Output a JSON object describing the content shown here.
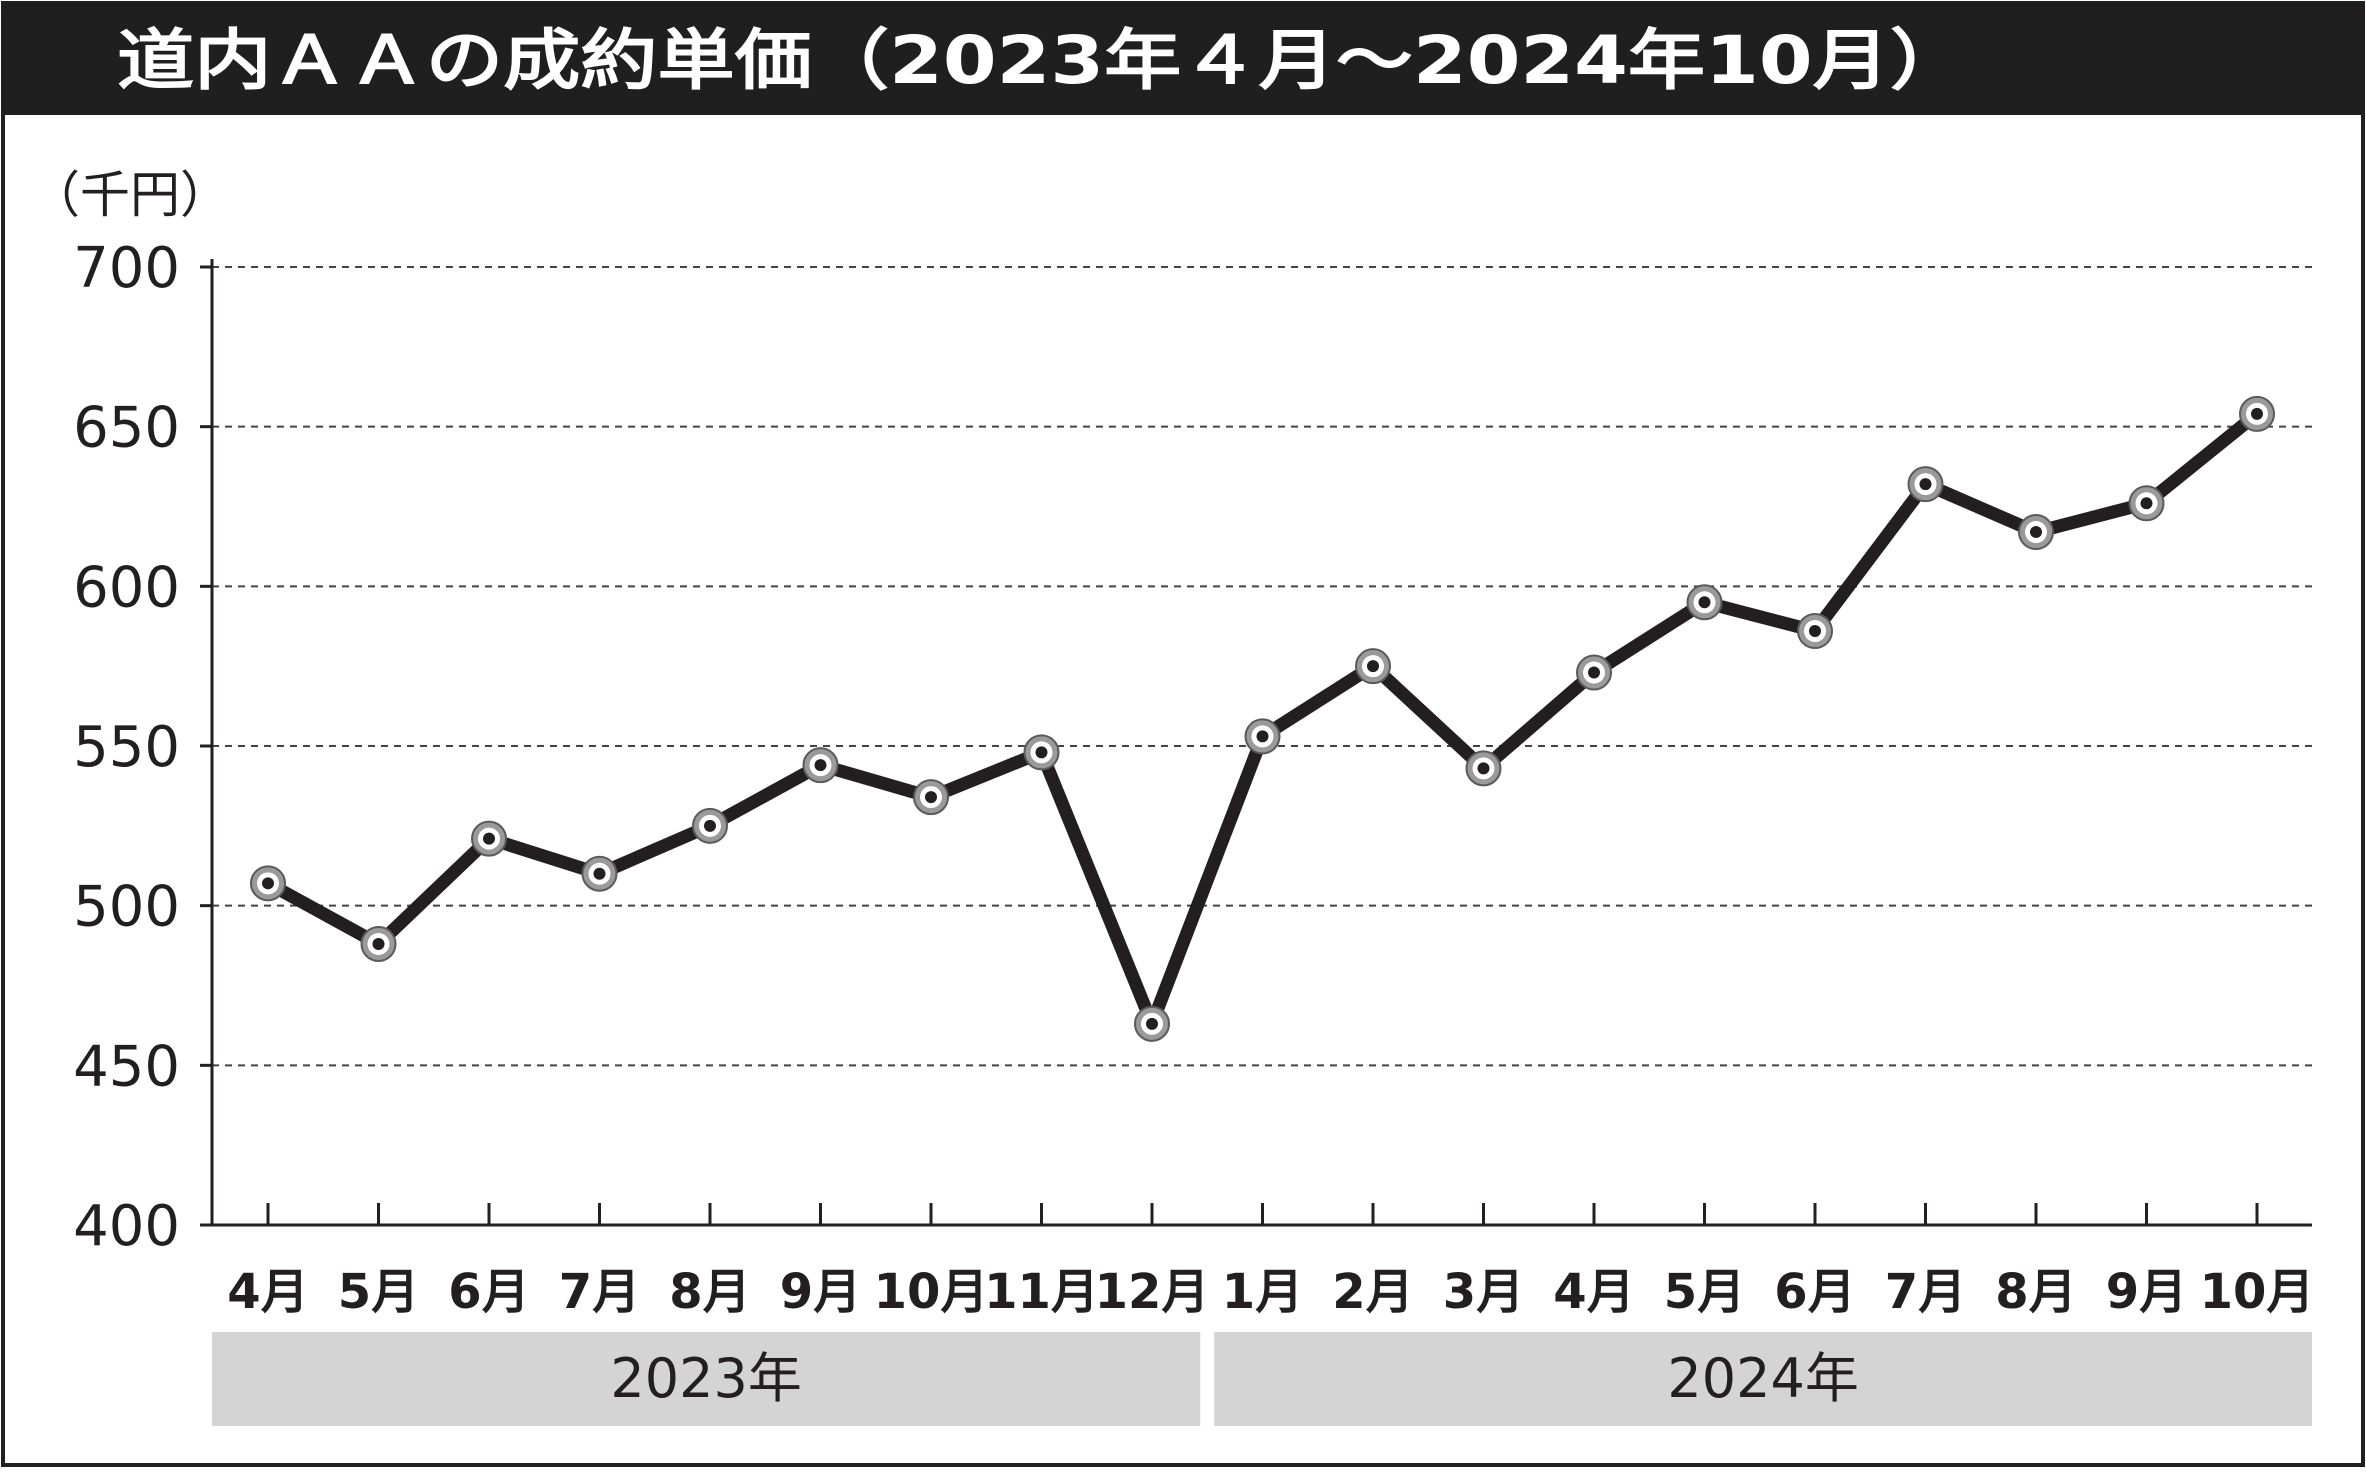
{
  "title": "道内ＡＡの成約単価（2023年４月～2024年10月）",
  "colors": {
    "title_bar": "#1f1f1f",
    "title_text": "#ffffff",
    "line": "#231f20",
    "marker_ring": "#9a9a9a",
    "year_band": "#d4d4d4",
    "grid": "#444444"
  },
  "chart_data": {
    "type": "line",
    "title": "道内ＡＡの成約単価（2023年４月～2024年10月）",
    "unit_label": "（千円）",
    "xlabel": "",
    "ylabel": "",
    "ylim": [
      400,
      700
    ],
    "yticks": [
      400,
      450,
      500,
      550,
      600,
      650,
      700
    ],
    "grid": "horizontal dashed",
    "legend": "none",
    "categories": [
      "4月",
      "5月",
      "6月",
      "7月",
      "8月",
      "9月",
      "10月",
      "11月",
      "12月",
      "1月",
      "2月",
      "3月",
      "4月",
      "5月",
      "6月",
      "7月",
      "8月",
      "9月",
      "10月"
    ],
    "year_groups": [
      {
        "label": "2023年",
        "start": 0,
        "end": 8
      },
      {
        "label": "2024年",
        "start": 9,
        "end": 18
      }
    ],
    "series": [
      {
        "values": [
          507,
          488,
          521,
          510,
          525,
          544,
          534,
          548,
          463,
          553,
          575,
          543,
          573,
          595,
          586,
          632,
          617,
          626,
          654
        ]
      }
    ]
  }
}
